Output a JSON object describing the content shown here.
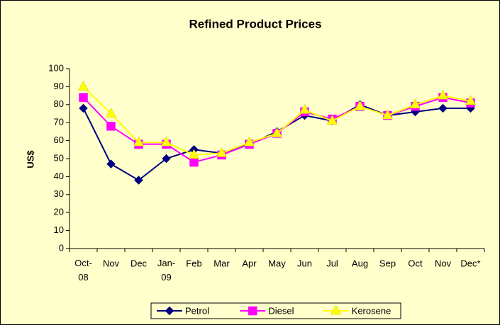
{
  "chart_data": {
    "type": "line",
    "title": "Refined Product Prices",
    "ylabel": "US$",
    "categories": [
      "Oct-08",
      "Nov",
      "Dec",
      "Jan-09",
      "Feb",
      "Mar",
      "Apr",
      "May",
      "Jun",
      "Jul",
      "Aug",
      "Sep",
      "Oct",
      "Nov",
      "Dec*"
    ],
    "series": [
      {
        "name": "Petrol",
        "color": "#000080",
        "marker": "diamond",
        "values": [
          78,
          47,
          38,
          50,
          55,
          53,
          58,
          65,
          74,
          71,
          80,
          74,
          76,
          78,
          78
        ]
      },
      {
        "name": "Diesel",
        "color": "#FF00FF",
        "marker": "square",
        "values": [
          84,
          68,
          58,
          58,
          48,
          52,
          58,
          64,
          76,
          72,
          79,
          74,
          79,
          84,
          81
        ]
      },
      {
        "name": "Kerosene",
        "color": "#FFFF00",
        "marker": "triangle",
        "values": [
          90,
          75,
          59,
          59,
          52,
          53,
          59,
          64,
          77,
          71,
          79,
          74,
          80,
          85,
          82
        ]
      }
    ],
    "ylim": [
      0,
      100
    ],
    "yticks": [
      0,
      10,
      20,
      30,
      40,
      50,
      60,
      70,
      80,
      90,
      100
    ],
    "grid": false,
    "legend": "bottom"
  }
}
